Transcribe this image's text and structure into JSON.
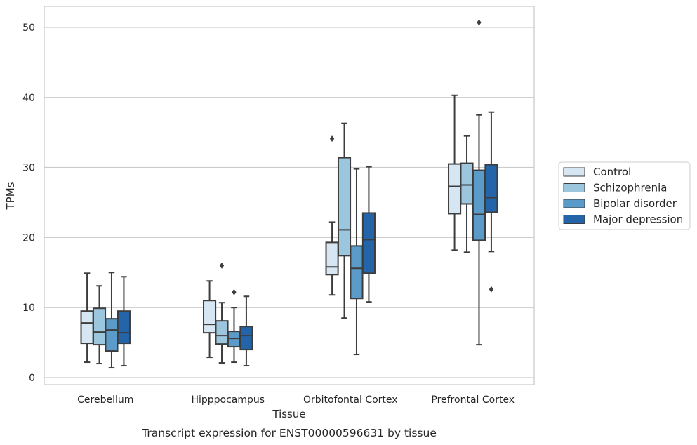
{
  "chart_data": {
    "type": "box",
    "title": "Transcript expression for ENST00000596631 by tissue",
    "xlabel": "Tissue",
    "ylabel": "TPMs",
    "ylim": [
      -1,
      53
    ],
    "yticks": [
      0,
      10,
      20,
      30,
      40,
      50
    ],
    "grid": "horizontal",
    "legend_position": "right",
    "categories": [
      "Cerebellum",
      "Hipppocampus",
      "Orbitofontal Cortex",
      "Prefrontal Cortex"
    ],
    "series": [
      {
        "name": "Control",
        "color": "#d6e6f3",
        "boxes": [
          {
            "whisker_low": 2.2,
            "q1": 4.9,
            "median": 7.8,
            "q3": 9.5,
            "whisker_high": 14.9,
            "outliers": []
          },
          {
            "whisker_low": 2.9,
            "q1": 6.4,
            "median": 7.6,
            "q3": 11.0,
            "whisker_high": 13.8,
            "outliers": []
          },
          {
            "whisker_low": 11.8,
            "q1": 14.7,
            "median": 15.8,
            "q3": 19.3,
            "whisker_high": 22.2,
            "outliers": [
              34.1
            ]
          },
          {
            "whisker_low": 18.2,
            "q1": 23.4,
            "median": 27.3,
            "q3": 30.5,
            "whisker_high": 40.3,
            "outliers": []
          }
        ]
      },
      {
        "name": "Schizophrenia",
        "color": "#9cc5de",
        "boxes": [
          {
            "whisker_low": 2.0,
            "q1": 4.7,
            "median": 6.5,
            "q3": 9.9,
            "whisker_high": 13.1,
            "outliers": []
          },
          {
            "whisker_low": 2.1,
            "q1": 4.8,
            "median": 6.0,
            "q3": 8.1,
            "whisker_high": 10.7,
            "outliers": [
              16.0
            ]
          },
          {
            "whisker_low": 8.5,
            "q1": 17.4,
            "median": 21.1,
            "q3": 31.4,
            "whisker_high": 36.3,
            "outliers": []
          },
          {
            "whisker_low": 17.9,
            "q1": 24.8,
            "median": 27.5,
            "q3": 30.6,
            "whisker_high": 34.5,
            "outliers": []
          }
        ]
      },
      {
        "name": "Bipolar disorder",
        "color": "#5a9bc9",
        "boxes": [
          {
            "whisker_low": 1.4,
            "q1": 3.8,
            "median": 6.8,
            "q3": 8.4,
            "whisker_high": 15.0,
            "outliers": []
          },
          {
            "whisker_low": 2.2,
            "q1": 4.4,
            "median": 5.6,
            "q3": 6.6,
            "whisker_high": 10.0,
            "outliers": [
              12.2
            ]
          },
          {
            "whisker_low": 3.3,
            "q1": 11.3,
            "median": 15.6,
            "q3": 18.8,
            "whisker_high": 29.8,
            "outliers": []
          },
          {
            "whisker_low": 4.7,
            "q1": 19.6,
            "median": 23.3,
            "q3": 29.6,
            "whisker_high": 37.5,
            "outliers": [
              50.7
            ]
          }
        ]
      },
      {
        "name": "Major depression",
        "color": "#2464a8",
        "boxes": [
          {
            "whisker_low": 1.7,
            "q1": 4.9,
            "median": 6.4,
            "q3": 9.5,
            "whisker_high": 14.4,
            "outliers": []
          },
          {
            "whisker_low": 1.7,
            "q1": 4.0,
            "median": 6.0,
            "q3": 7.3,
            "whisker_high": 11.6,
            "outliers": []
          },
          {
            "whisker_low": 10.8,
            "q1": 14.9,
            "median": 19.7,
            "q3": 23.5,
            "whisker_high": 30.1,
            "outliers": []
          },
          {
            "whisker_low": 18.0,
            "q1": 23.6,
            "median": 25.7,
            "q3": 30.4,
            "whisker_high": 37.9,
            "outliers": [
              12.6
            ]
          }
        ]
      }
    ]
  }
}
